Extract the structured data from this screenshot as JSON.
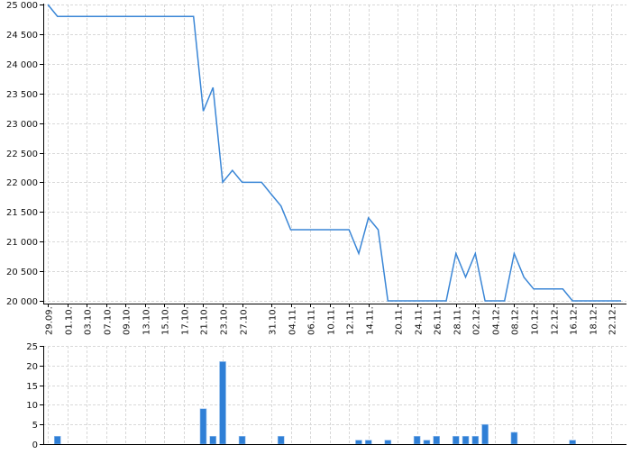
{
  "chart_data": [
    {
      "type": "line",
      "color": "#3a86d6",
      "ylim": [
        20000,
        25000
      ],
      "y_ticks": [
        20000,
        20500,
        21000,
        21500,
        22000,
        22500,
        23000,
        23500,
        24000,
        24500,
        25000
      ],
      "y_tick_labels": [
        "20 000",
        "20 500",
        "21 000",
        "21 500",
        "22 000",
        "22 500",
        "23 000",
        "23 500",
        "24 000",
        "24 500",
        "25 000"
      ],
      "grid": true,
      "x_tick_labels": [
        {
          "index": 0,
          "label": "29.09."
        },
        {
          "index": 2,
          "label": "01.10."
        },
        {
          "index": 4,
          "label": "03.10."
        },
        {
          "index": 6,
          "label": "07.10."
        },
        {
          "index": 8,
          "label": "09.10."
        },
        {
          "index": 10,
          "label": "13.10."
        },
        {
          "index": 12,
          "label": "15.10."
        },
        {
          "index": 14,
          "label": "17.10."
        },
        {
          "index": 16,
          "label": "21.10."
        },
        {
          "index": 18,
          "label": "23.10."
        },
        {
          "index": 20,
          "label": "27.10."
        },
        {
          "index": 23,
          "label": "31.10."
        },
        {
          "index": 25,
          "label": "04.11."
        },
        {
          "index": 27,
          "label": "06.11."
        },
        {
          "index": 29,
          "label": "10.11."
        },
        {
          "index": 31,
          "label": "12.11."
        },
        {
          "index": 33,
          "label": "14.11."
        },
        {
          "index": 36,
          "label": "20.11."
        },
        {
          "index": 38,
          "label": "24.11."
        },
        {
          "index": 40,
          "label": "26.11."
        },
        {
          "index": 42,
          "label": "28.11."
        },
        {
          "index": 44,
          "label": "02.12."
        },
        {
          "index": 46,
          "label": "04.12."
        },
        {
          "index": 48,
          "label": "08.12."
        },
        {
          "index": 50,
          "label": "10.12."
        },
        {
          "index": 52,
          "label": "12.12."
        },
        {
          "index": 54,
          "label": "16.12."
        },
        {
          "index": 56,
          "label": "18.12."
        },
        {
          "index": 58,
          "label": "22.12."
        }
      ],
      "values": [
        25000,
        24800,
        24800,
        24800,
        24800,
        24800,
        24800,
        24800,
        24800,
        24800,
        24800,
        24800,
        24800,
        24800,
        24800,
        24800,
        23200,
        23600,
        22000,
        22200,
        22000,
        22000,
        22000,
        21800,
        21600,
        21200,
        21200,
        21200,
        21200,
        21200,
        21200,
        21200,
        20800,
        21400,
        21200,
        20000,
        20000,
        20000,
        20000,
        20000,
        20000,
        20000,
        20800,
        20400,
        20800,
        20000,
        20000,
        20000,
        20800,
        20400,
        20200,
        20200,
        20200,
        20200,
        20000,
        20000,
        20000,
        20000,
        20000,
        20000
      ]
    },
    {
      "type": "bar",
      "color": "#2f7fd6",
      "ylim": [
        0,
        25
      ],
      "y_ticks": [
        0,
        5,
        10,
        15,
        20,
        25
      ],
      "y_tick_labels": [
        "0",
        "5",
        "10",
        "15",
        "20",
        "25"
      ],
      "grid": true,
      "values": [
        0,
        2,
        0,
        0,
        0,
        0,
        0,
        0,
        0,
        0,
        0,
        0,
        0,
        0,
        0,
        0,
        9,
        2,
        21,
        0,
        2,
        0,
        0,
        0,
        2,
        0,
        0,
        0,
        0,
        0,
        0,
        0,
        1,
        1,
        0,
        1,
        0,
        0,
        2,
        1,
        2,
        0,
        2,
        2,
        2,
        5,
        0,
        0,
        3,
        0,
        0,
        0,
        0,
        0,
        1,
        0,
        0,
        0,
        0,
        0
      ]
    }
  ]
}
